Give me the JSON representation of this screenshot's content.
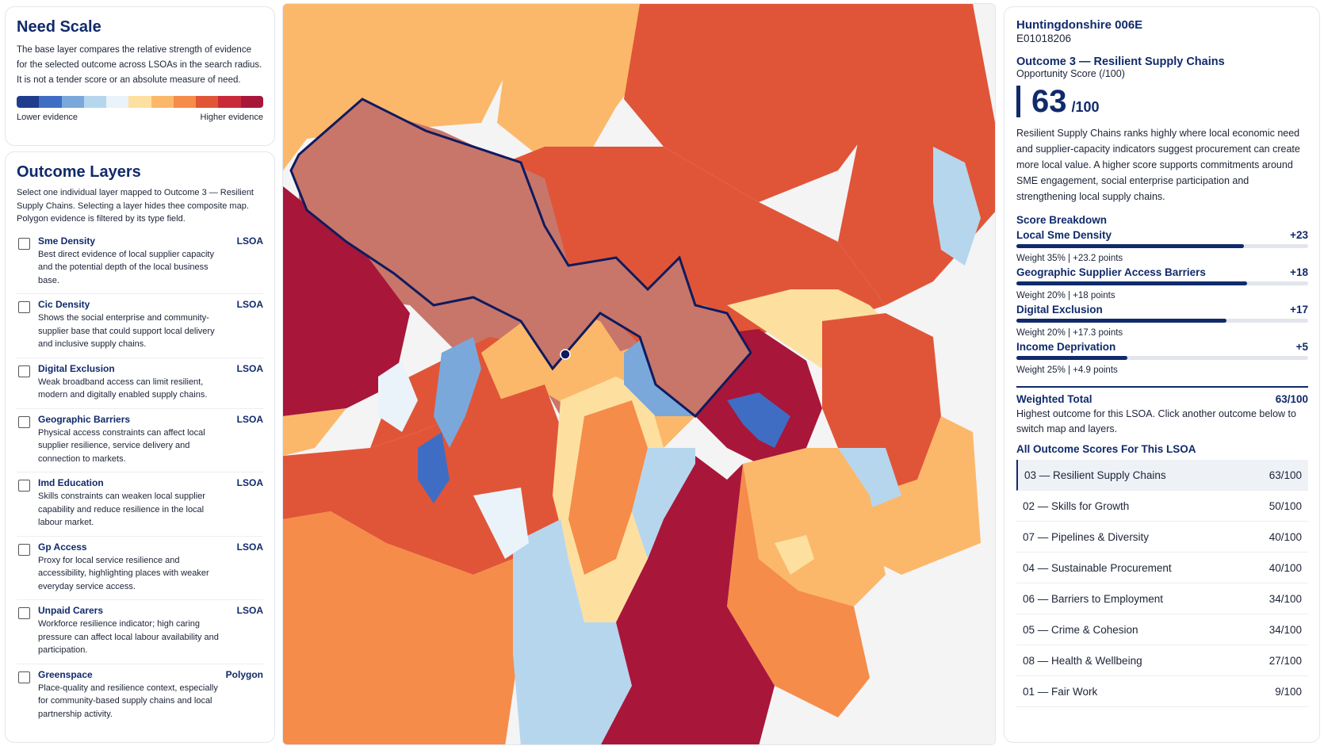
{
  "need_scale": {
    "title": "Need Scale",
    "description": "The base layer compares the relative strength of evidence for the selected outcome across LSOAs in the search radius. It is not a tender score or an absolute measure of need.",
    "colors": [
      "#1f3d8c",
      "#3f6dc4",
      "#7aa8da",
      "#b6d6ee",
      "#eaf3f9",
      "#fde0a0",
      "#fcb86a",
      "#f58c4a",
      "#e05538",
      "#c82a3a",
      "#a8163a"
    ],
    "low_label": "Lower evidence",
    "high_label": "Higher evidence"
  },
  "outcome_layers": {
    "title": "Outcome Layers",
    "description": "Select one individual layer mapped to Outcome 3 — Resilient Supply Chains. Selecting a layer hides thee composite map. Polygon evidence is filtered by its type field.",
    "layers": [
      {
        "name": "Sme Density",
        "type": "LSOA",
        "desc": "Best direct evidence of local supplier capacity and the potential depth of the local business base."
      },
      {
        "name": "Cic Density",
        "type": "LSOA",
        "desc": "Shows the social enterprise and community-supplier base that could support local delivery and inclusive supply chains."
      },
      {
        "name": "Digital Exclusion",
        "type": "LSOA",
        "desc": "Weak broadband access can limit resilient, modern and digitally enabled supply chains."
      },
      {
        "name": "Geographic Barriers",
        "type": "LSOA",
        "desc": "Physical access constraints can affect local supplier resilience, service delivery and connection to markets."
      },
      {
        "name": "Imd Education",
        "type": "LSOA",
        "desc": "Skills constraints can weaken local supplier capability and reduce resilience in the local labour market."
      },
      {
        "name": "Gp Access",
        "type": "LSOA",
        "desc": "Proxy for local service resilience and accessibility, highlighting places with weaker everyday service access."
      },
      {
        "name": "Unpaid Carers",
        "type": "LSOA",
        "desc": "Workforce resilience indicator; high caring pressure can affect local labour availability and participation."
      },
      {
        "name": "Greenspace",
        "type": "Polygon",
        "desc": "Place-quality and resilience context, especially for community-based supply chains and local partnership activity."
      }
    ]
  },
  "map": {
    "selected_outline_color": "#0f1b5e"
  },
  "detail": {
    "area_name": "Huntingdonshire 006E",
    "area_code": "E01018206",
    "outcome_title": "Outcome 3 — Resilient Supply Chains",
    "score_label": "Opportunity Score (/100)",
    "score": "63",
    "score_den": "/100",
    "summary": "Resilient Supply Chains ranks highly where local economic need and supplier-capacity indicators suggest procurement can create more local value. A higher score supports commitments around SME engagement, social enterprise participation and strengthening local supply chains.",
    "breakdown_title": "Score Breakdown",
    "breakdown": [
      {
        "name": "Local Sme Density",
        "points": "+23",
        "sub": "Weight 35% | +23.2 points",
        "fill": 0.78
      },
      {
        "name": "Geographic Supplier Access Barriers",
        "points": "+18",
        "sub": "Weight 20% | +18 points",
        "fill": 0.79
      },
      {
        "name": "Digital Exclusion",
        "points": "+17",
        "sub": "Weight 20% | +17.3 points",
        "fill": 0.72
      },
      {
        "name": "Income Deprivation",
        "points": "+5",
        "sub": "Weight 25% | +4.9 points",
        "fill": 0.38
      }
    ],
    "total_label": "Weighted Total",
    "total_value": "63/100",
    "total_desc": "Highest outcome for this LSOA. Click another outcome below to switch map and layers.",
    "all_title": "All Outcome Scores For This LSOA",
    "all_scores": [
      {
        "label": "03 — Resilient Supply Chains",
        "score": "63/100",
        "active": true
      },
      {
        "label": "02 — Skills for Growth",
        "score": "50/100"
      },
      {
        "label": "07 — Pipelines & Diversity",
        "score": "40/100"
      },
      {
        "label": "04 — Sustainable Procurement",
        "score": "40/100"
      },
      {
        "label": "06 — Barriers to Employment",
        "score": "34/100"
      },
      {
        "label": "05 — Crime & Cohesion",
        "score": "34/100"
      },
      {
        "label": "08 — Health & Wellbeing",
        "score": "27/100"
      },
      {
        "label": "01 — Fair Work",
        "score": "9/100"
      }
    ]
  }
}
